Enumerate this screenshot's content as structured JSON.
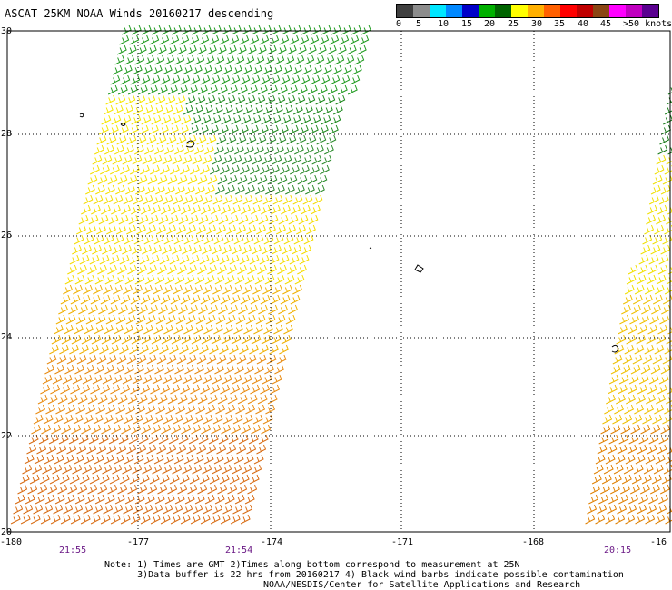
{
  "title": "ASCAT 25KM NOAA Winds 20160217 descending",
  "legend": {
    "colors": [
      "#404040",
      "#8c8c8c",
      "#00e6ff",
      "#0088ff",
      "#0000c8",
      "#00b000",
      "#006400",
      "#ffff00",
      "#ffb000",
      "#ff6000",
      "#ff0000",
      "#c00000",
      "#8b4513",
      "#ff00ff",
      "#c000c0",
      "#5a0090"
    ],
    "labels": [
      "0",
      "5",
      "10",
      "15",
      "20",
      "25",
      "30",
      "35",
      "40",
      "45",
      ">50 knots"
    ]
  },
  "map": {
    "lat_labels": [
      "30",
      "28",
      "26",
      "24",
      "22",
      "20"
    ],
    "lon_labels": [
      "-180",
      "-177",
      "-174",
      "-171",
      "-168",
      "-16"
    ],
    "pass_times": [
      "21:55",
      "21:54",
      "20:15"
    ]
  },
  "notes": {
    "line1": "Note: 1) Times are GMT 2)Times along bottom correspond to measurement at 25N",
    "line2": "      3)Data buffer is 22 hrs from 20160217 4) Black wind barbs indicate possible contamination",
    "credit": "NOAA/NESDIS/Center for Satellite Applications and Research"
  }
}
